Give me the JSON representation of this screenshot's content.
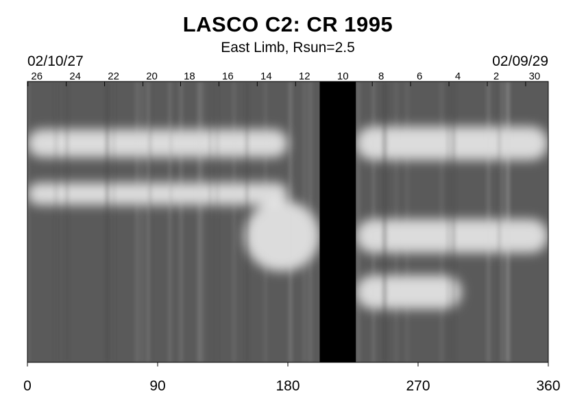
{
  "chart_data": {
    "type": "heatmap",
    "title": "LASCO C2: CR 1995",
    "subtitle": "East Limb, Rsun=2.5",
    "date_left": "02/10/27",
    "date_right": "02/09/29",
    "colormap": "grayscale",
    "x_axis": {
      "range": [
        0,
        360
      ],
      "ticks": [
        0,
        90,
        180,
        270,
        360
      ]
    },
    "top_axis": {
      "day_labels": [
        {
          "label": "26",
          "lon": 6.5
        },
        {
          "label": "24",
          "lon": 33
        },
        {
          "label": "22",
          "lon": 59.5
        },
        {
          "label": "20",
          "lon": 86
        },
        {
          "label": "18",
          "lon": 112
        },
        {
          "label": "16",
          "lon": 138.5
        },
        {
          "label": "14",
          "lon": 165
        },
        {
          "label": "12",
          "lon": 191.5
        },
        {
          "label": "10",
          "lon": 218
        },
        {
          "label": "8",
          "lon": 244.5
        },
        {
          "label": "6",
          "lon": 271
        },
        {
          "label": "4",
          "lon": 297.5
        },
        {
          "label": "2",
          "lon": 324
        },
        {
          "label": "30",
          "lon": 350.5
        }
      ]
    },
    "data_gap": {
      "lon_start": 202,
      "lon_end": 227
    },
    "bright_bands": [
      {
        "lon_start": 0,
        "lon_end": 180,
        "y_center": 0.22,
        "width": 0.1
      },
      {
        "lon_start": 0,
        "lon_end": 180,
        "y_center": 0.4,
        "width": 0.08
      },
      {
        "lon_start": 150,
        "lon_end": 202,
        "y_center": 0.55,
        "width": 0.25
      },
      {
        "lon_start": 227,
        "lon_end": 360,
        "y_center": 0.22,
        "width": 0.12
      },
      {
        "lon_start": 227,
        "lon_end": 360,
        "y_center": 0.55,
        "width": 0.12
      },
      {
        "lon_start": 227,
        "lon_end": 300,
        "y_center": 0.75,
        "width": 0.12
      }
    ]
  }
}
